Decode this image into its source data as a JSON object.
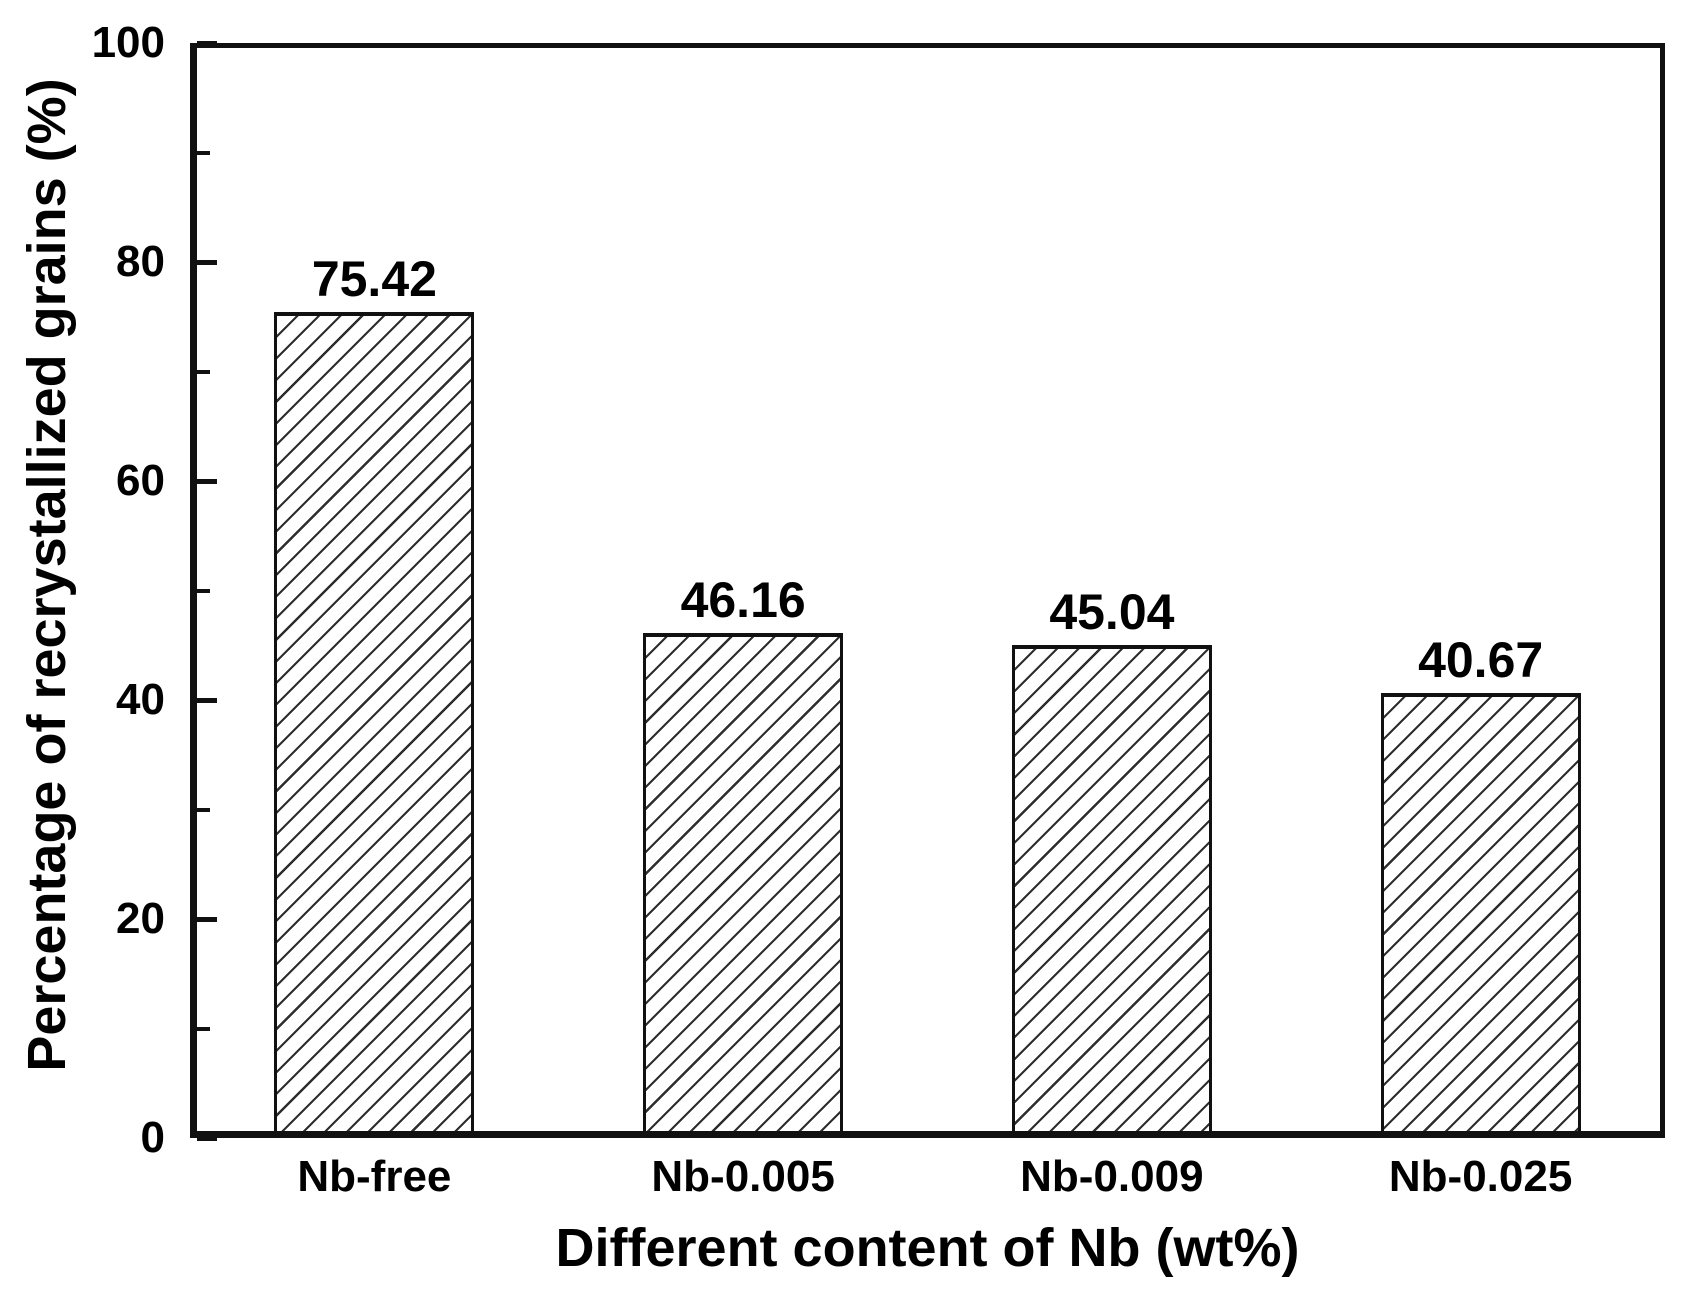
{
  "figure": {
    "background": "#ffffff"
  },
  "chart_data": {
    "type": "bar",
    "title": "",
    "categories": [
      "Nb-free",
      "Nb-0.005",
      "Nb-0.009",
      "Nb-0.025"
    ],
    "values": [
      75.42,
      46.16,
      45.04,
      40.67
    ],
    "bar_value_labels": [
      "75.42",
      "46.16",
      "45.04",
      "40.67"
    ],
    "xlabel": "Different content of Nb (wt%)",
    "ylabel": "Percentage of recrystallized grains (%)",
    "ylim": [
      0,
      100
    ],
    "y_major_ticks": [
      0,
      20,
      40,
      60,
      80,
      100
    ],
    "y_major_tick_labels": [
      "0",
      "20",
      "40",
      "60",
      "80",
      "100"
    ],
    "y_minor_ticks": [
      10,
      30,
      50,
      70,
      90
    ],
    "grid": false,
    "legend": null,
    "style": {
      "bar_fill": "#ffffff",
      "bar_hatch": "forward-diagonal",
      "hatch_color": "#2e2e2e",
      "bar_border_color": "#111111",
      "axis_color": "#111111",
      "text_color": "#000000",
      "background": "#ffffff"
    }
  }
}
